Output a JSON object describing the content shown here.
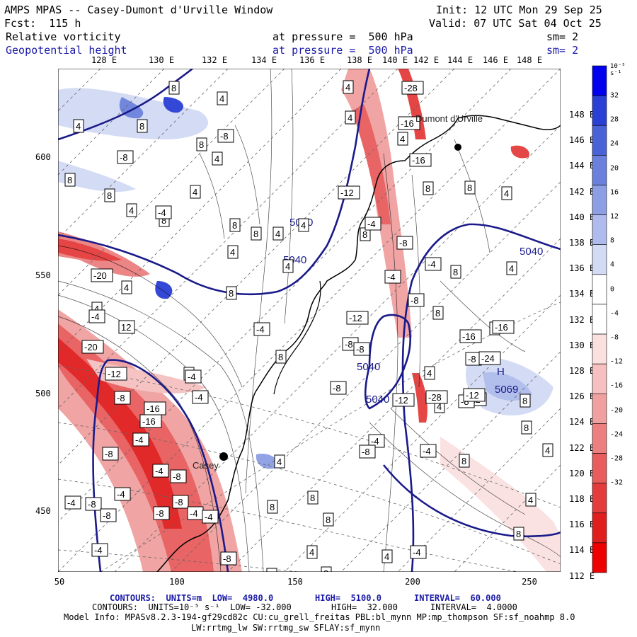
{
  "header": {
    "left1": "AMPS MPAS -- Casey-Dumont d'Urville Window",
    "left2": "Fcst:  115 h",
    "right1": "Init: 12 UTC Mon 29 Sep 25",
    "right2": "Valid: 07 UTC Sat 04 Oct 25"
  },
  "fields": [
    {
      "name": "Relative vorticity",
      "level": "at pressure =  500 hPa",
      "sm": "sm= 2",
      "color": "#000000"
    },
    {
      "name": "Geopotential height",
      "level": "at pressure =  500 hPa",
      "sm": "sm= 2",
      "color": "#1a1aa8"
    }
  ],
  "lon_top": [
    "128 E",
    "130 E",
    "132 E",
    "134 E",
    "136 E",
    "138 E",
    "140 E",
    "142 E",
    "144 E",
    "146 E",
    "148 E"
  ],
  "lon_right": [
    "148 E",
    "146 E",
    "144 E",
    "142 E",
    "140 E",
    "138 E",
    "136 E",
    "134 E",
    "132 E",
    "130 E",
    "128 E",
    "126 E",
    "124 E",
    "122 E",
    "120 E",
    "118 E",
    "116 E",
    "114 E",
    "112 E"
  ],
  "y_ticks": [
    "600",
    "550",
    "500",
    "450"
  ],
  "x_ticks": [
    "50",
    "100",
    "150",
    "200",
    "250"
  ],
  "colorbar": {
    "unit_label": "10⁻⁵ s⁻¹",
    "labels": [
      "32",
      "28",
      "24",
      "20",
      "16",
      "12",
      "8",
      "4",
      "0",
      "-4",
      "-8",
      "-12",
      "-16",
      "-20",
      "-24",
      "-28",
      "-32"
    ],
    "colors": [
      "#0000ee",
      "#2a3fd6",
      "#4a62d8",
      "#6a80dc",
      "#8c9ee4",
      "#aebbec",
      "#d2daf4",
      "#ffffff",
      "#ffffff",
      "#fbe0e0",
      "#f6c0c0",
      "#f1a0a0",
      "#ec8080",
      "#e85c5c",
      "#e43c3c",
      "#e01e1e",
      "#ee0000"
    ]
  },
  "height_labels": [
    "5040",
    "5040",
    "5040",
    "5040",
    "5040",
    "5069"
  ],
  "vort_labels": {
    "pos": [
      "8",
      "4",
      "4",
      "8",
      "8",
      "4",
      "8",
      "8",
      "4",
      "4",
      "8",
      "4",
      "8",
      "4",
      "8",
      "4",
      "4",
      "8",
      "4",
      "4",
      "8",
      "8",
      "4",
      "4",
      "4",
      "8",
      "8",
      "4",
      "4",
      "8",
      "4",
      "8",
      "8",
      "4",
      "4",
      "8",
      "8",
      "4",
      "4",
      "8",
      "4",
      "8",
      "4",
      "12",
      "4",
      "8",
      "8",
      "4",
      "8",
      "8"
    ],
    "neg": [
      "-28",
      "-16",
      "-8",
      "-4",
      "-8",
      "-16",
      "-12",
      "-4",
      "-8",
      "-4",
      "-8",
      "-4",
      "-12",
      "-8",
      "-4",
      "-8",
      "-8",
      "-4",
      "-8",
      "-4",
      "-12",
      "-8",
      "-12",
      "-16",
      "-8",
      "-28",
      "-12",
      "-24",
      "-16",
      "-20",
      "-4",
      "-20",
      "-12",
      "-8",
      "-16",
      "-16",
      "-8",
      "-4",
      "-4",
      "-8",
      "-8",
      "-4",
      "-4",
      "-8",
      "-4",
      "-4",
      "-4",
      "-8",
      "-8",
      "-4",
      "-4",
      "-8",
      "-4"
    ]
  },
  "H_label": "H",
  "places": [
    {
      "name": "Dumont d'Urville"
    },
    {
      "name": "Casey"
    }
  ],
  "footer": {
    "c1_left": "CONTOURS:  UNITS=m  LOW=  4980.0",
    "c1_mid": "HIGH=  5100.0",
    "c1_right": "INTERVAL=  60.000",
    "c2_left": "CONTOURS:  UNITS=10⁻⁵ s⁻¹  LOW= -32.000",
    "c2_mid": "HIGH=  32.000",
    "c2_right": "INTERVAL=  4.0000",
    "model1": "Model Info: MPASv8.2.3-194-gf29cd82c CU:cu_grell_freitas PBL:bl_mynn MP:mp_thompson SF:sf_noahmp 8.0",
    "model2": "LW:rrtmg_lw SW:rrtmg_sw SFLAY:sf_mynn"
  }
}
